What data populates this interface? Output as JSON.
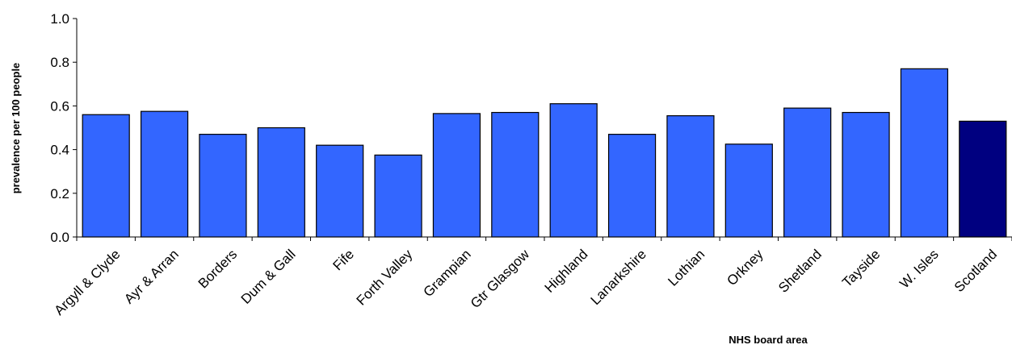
{
  "chart_data": {
    "type": "bar",
    "categories": [
      "Argyll & Clyde",
      "Ayr & Arran",
      "Borders",
      "Dum & Gall",
      "Fife",
      "Forth Valley",
      "Grampian",
      "Gtr Glasgow",
      "Highland",
      "Lanarkshire",
      "Lothian",
      "Orkney",
      "Shetland",
      "Tayside",
      "W. Isles",
      "Scotland"
    ],
    "values": [
      0.56,
      0.575,
      0.47,
      0.5,
      0.42,
      0.375,
      0.565,
      0.57,
      0.61,
      0.47,
      0.555,
      0.425,
      0.59,
      0.57,
      0.77,
      0.53
    ],
    "bar_colors": [
      "#3366ff",
      "#3366ff",
      "#3366ff",
      "#3366ff",
      "#3366ff",
      "#3366ff",
      "#3366ff",
      "#3366ff",
      "#3366ff",
      "#3366ff",
      "#3366ff",
      "#3366ff",
      "#3366ff",
      "#3366ff",
      "#3366ff",
      "#000080"
    ],
    "yticks": [
      "0.0",
      "0.2",
      "0.4",
      "0.6",
      "0.8",
      "1.0"
    ],
    "ylim": [
      0,
      1.0
    ],
    "ylabel": "prevalence per 100 people",
    "xlabel": "NHS board area",
    "grid": false,
    "legend": "none"
  }
}
